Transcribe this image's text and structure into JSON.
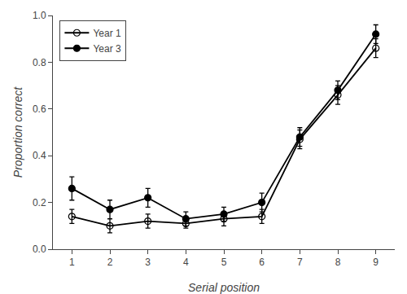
{
  "chart_data": {
    "type": "line",
    "xlabel": "Serial position",
    "ylabel": "Proportion correct",
    "x": [
      1,
      2,
      3,
      4,
      5,
      6,
      7,
      8,
      9
    ],
    "series": [
      {
        "name": "Year 1",
        "color": "#000000",
        "marker": "circle-open",
        "values": [
          0.14,
          0.1,
          0.12,
          0.11,
          0.13,
          0.14,
          0.47,
          0.66,
          0.86
        ],
        "errors": [
          0.03,
          0.03,
          0.03,
          0.02,
          0.03,
          0.03,
          0.04,
          0.04,
          0.04
        ]
      },
      {
        "name": "Year 3",
        "color": "#000000",
        "marker": "circle",
        "values": [
          0.26,
          0.17,
          0.22,
          0.13,
          0.15,
          0.2,
          0.48,
          0.68,
          0.92
        ],
        "errors": [
          0.05,
          0.04,
          0.04,
          0.03,
          0.03,
          0.04,
          0.04,
          0.04,
          0.04
        ]
      }
    ],
    "xlim": [
      0.5,
      9.5
    ],
    "xticks": [
      1,
      2,
      3,
      4,
      5,
      6,
      7,
      8,
      9
    ],
    "ylim": [
      0,
      1.0
    ],
    "yticks": [
      {
        "value": 0,
        "label": "0.0"
      },
      0.2,
      0.4,
      0.6,
      0.8,
      {
        "value": 1.0,
        "label": "1.0"
      }
    ],
    "legend": "upper left",
    "grid": false
  }
}
